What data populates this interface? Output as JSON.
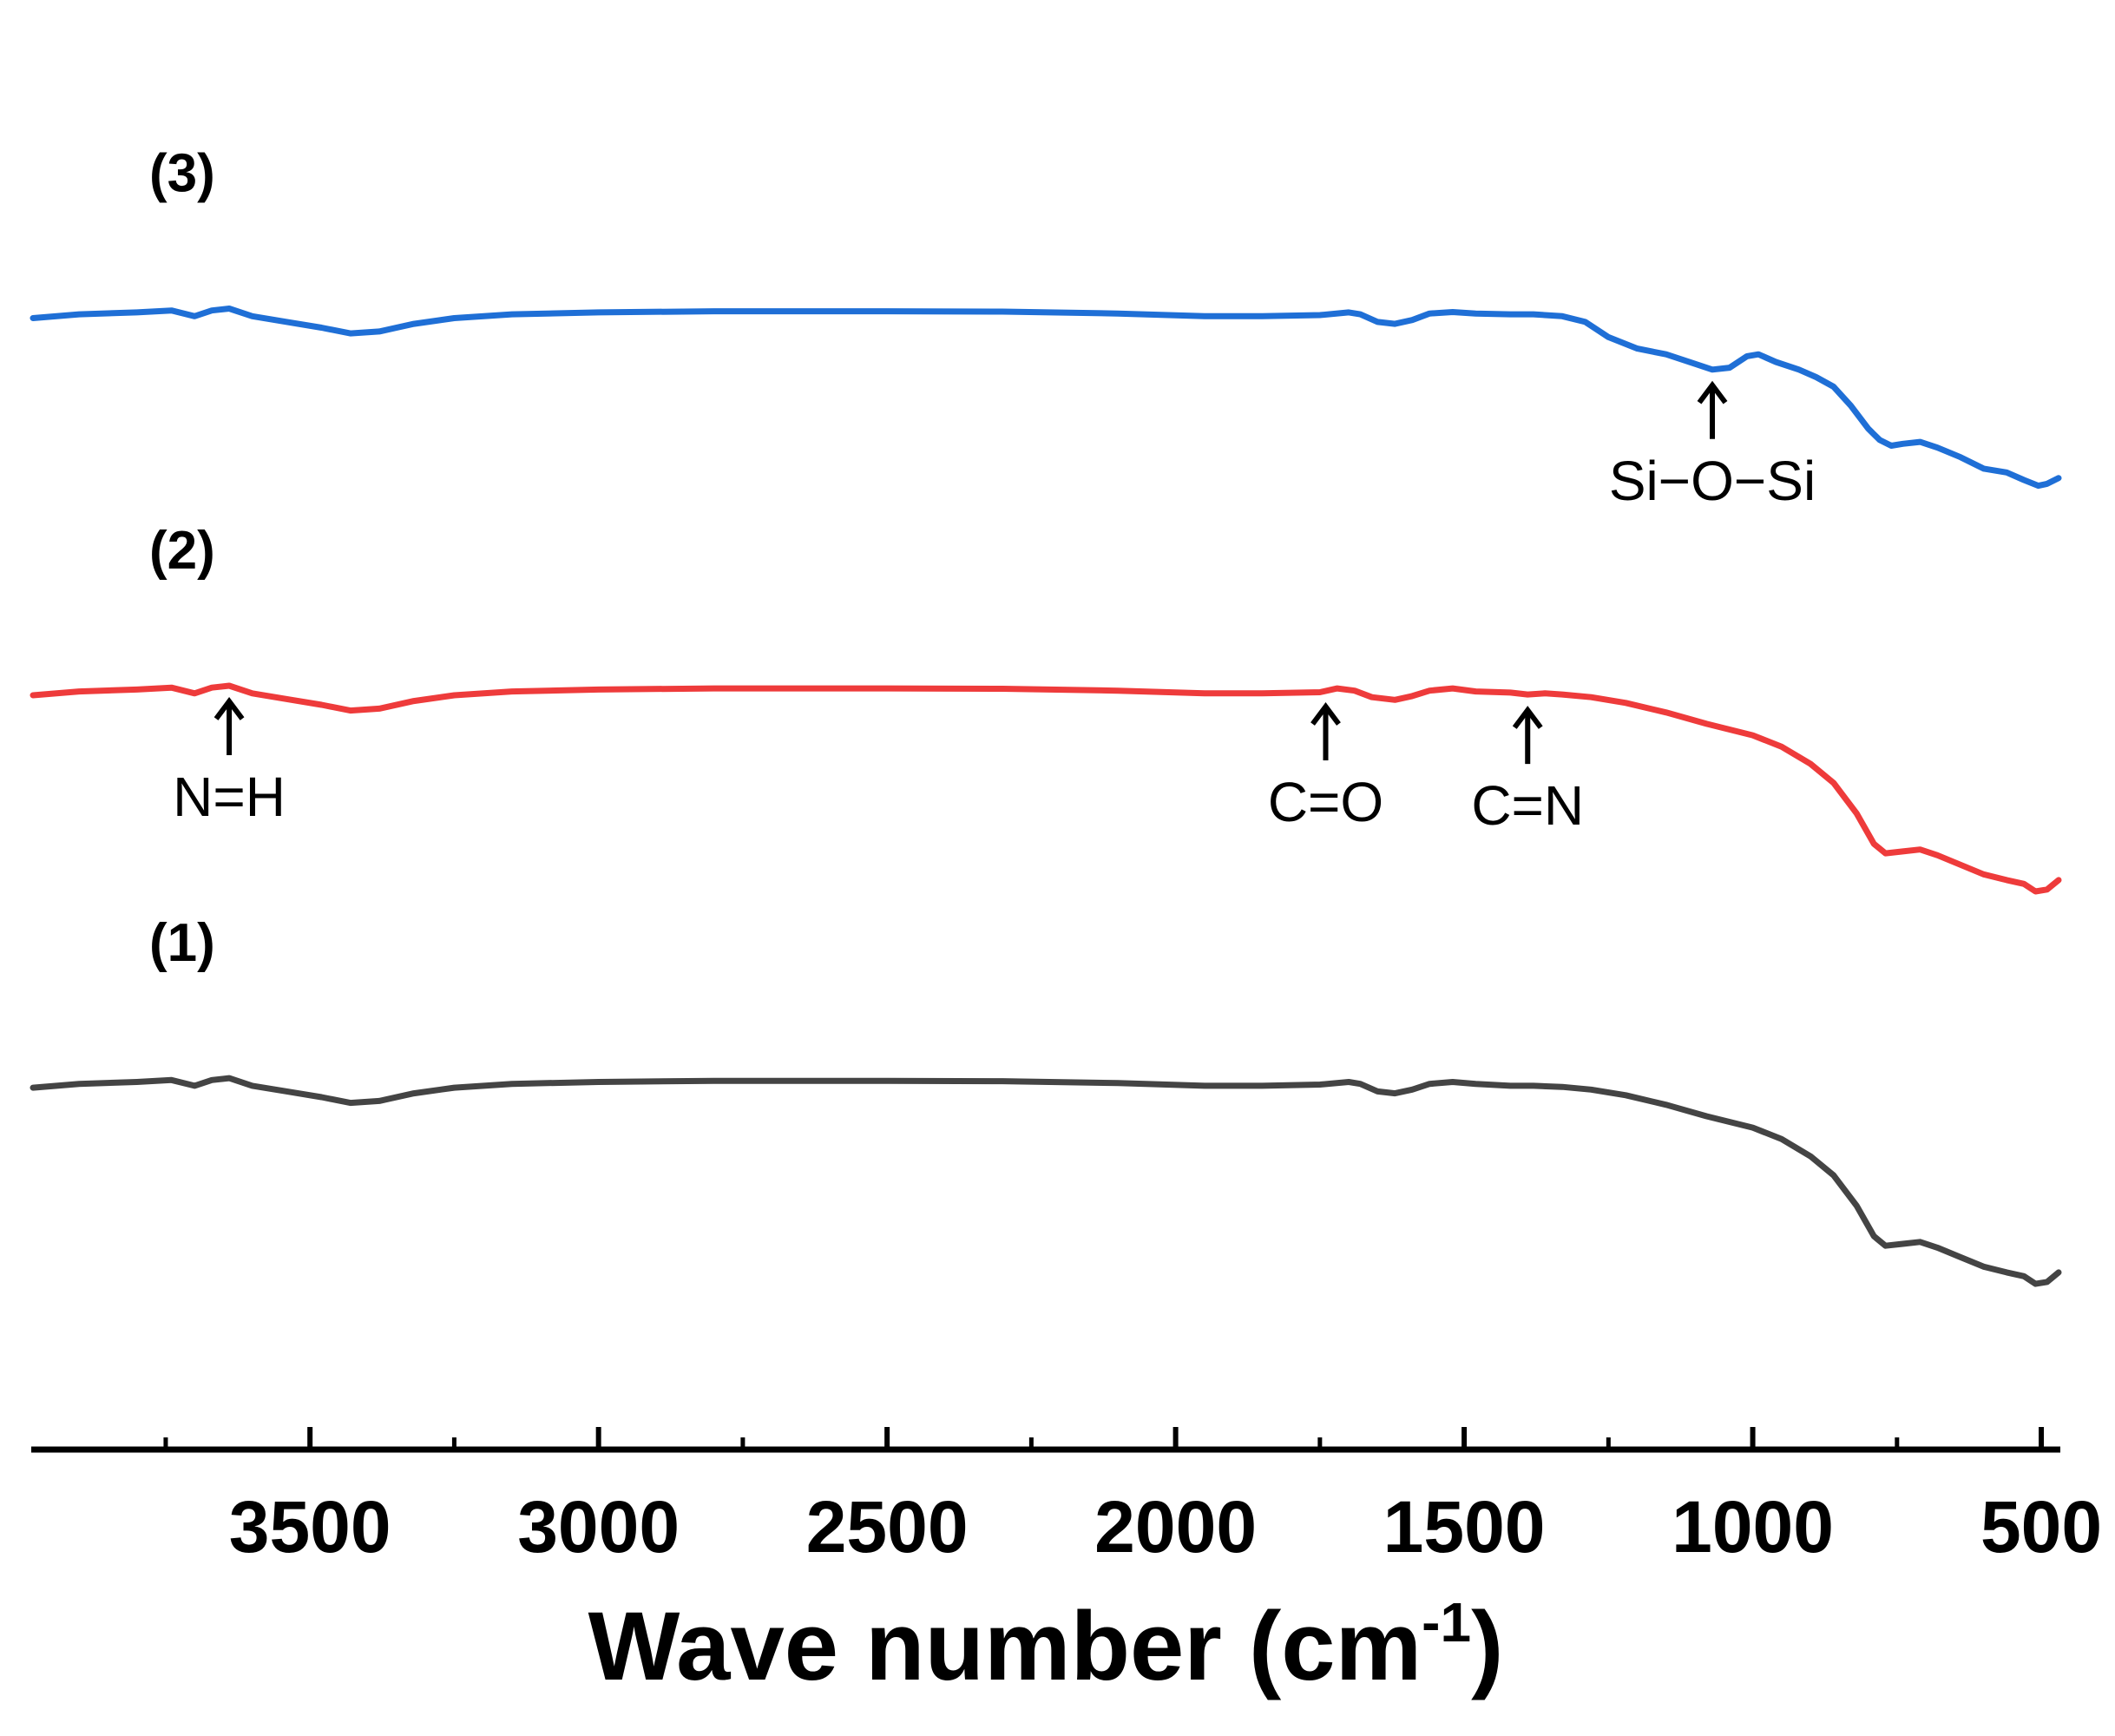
{
  "chart_data": {
    "type": "line",
    "xlabel": {
      "text": "Wave number (cm",
      "sup": "-1",
      "close": ")"
    },
    "ylabel": "",
    "x_reversed": true,
    "xlim": [
      3980,
      470
    ],
    "ylim": [
      0,
      3.6
    ],
    "x_ticks": [
      {
        "value": 3500,
        "label": "3500"
      },
      {
        "value": 3000,
        "label": "3000"
      },
      {
        "value": 2500,
        "label": "2500"
      },
      {
        "value": 2000,
        "label": "2000"
      },
      {
        "value": 1500,
        "label": "1500"
      },
      {
        "value": 1000,
        "label": "1000"
      },
      {
        "value": 500,
        "label": "500"
      }
    ],
    "x_minor_ticks": [
      3750,
      3250,
      2750,
      2250,
      1750,
      1250,
      750
    ],
    "grid": false,
    "series": [
      {
        "name": "(1)",
        "color": "#444444",
        "offset": 0.0,
        "points": [
          [
            3980,
            0.95
          ],
          [
            3900,
            0.96
          ],
          [
            3800,
            0.965
          ],
          [
            3740,
            0.97
          ],
          [
            3700,
            0.955
          ],
          [
            3670,
            0.97
          ],
          [
            3640,
            0.975
          ],
          [
            3600,
            0.955
          ],
          [
            3540,
            0.94
          ],
          [
            3480,
            0.925
          ],
          [
            3430,
            0.91
          ],
          [
            3380,
            0.915
          ],
          [
            3320,
            0.935
          ],
          [
            3250,
            0.95
          ],
          [
            3150,
            0.96
          ],
          [
            3000,
            0.965
          ],
          [
            2800,
            0.968
          ],
          [
            2500,
            0.968
          ],
          [
            2300,
            0.967
          ],
          [
            2100,
            0.962
          ],
          [
            1950,
            0.955
          ],
          [
            1850,
            0.955
          ],
          [
            1750,
            0.958
          ],
          [
            1700,
            0.965
          ],
          [
            1680,
            0.96
          ],
          [
            1650,
            0.94
          ],
          [
            1620,
            0.935
          ],
          [
            1590,
            0.945
          ],
          [
            1560,
            0.96
          ],
          [
            1520,
            0.965
          ],
          [
            1480,
            0.96
          ],
          [
            1420,
            0.955
          ],
          [
            1380,
            0.955
          ],
          [
            1330,
            0.952
          ],
          [
            1280,
            0.945
          ],
          [
            1220,
            0.93
          ],
          [
            1150,
            0.905
          ],
          [
            1080,
            0.875
          ],
          [
            1000,
            0.845
          ],
          [
            950,
            0.815
          ],
          [
            900,
            0.77
          ],
          [
            860,
            0.72
          ],
          [
            820,
            0.64
          ],
          [
            790,
            0.56
          ],
          [
            770,
            0.535
          ],
          [
            740,
            0.54
          ],
          [
            710,
            0.545
          ],
          [
            680,
            0.53
          ],
          [
            640,
            0.505
          ],
          [
            600,
            0.48
          ],
          [
            560,
            0.465
          ],
          [
            530,
            0.455
          ],
          [
            510,
            0.435
          ],
          [
            490,
            0.44
          ],
          [
            470,
            0.465
          ]
        ]
      },
      {
        "name": "(2)",
        "color": "#ee3b3b",
        "offset": 1.03,
        "points": [
          [
            3980,
            0.95
          ],
          [
            3900,
            0.96
          ],
          [
            3800,
            0.965
          ],
          [
            3740,
            0.97
          ],
          [
            3700,
            0.955
          ],
          [
            3670,
            0.97
          ],
          [
            3640,
            0.975
          ],
          [
            3600,
            0.955
          ],
          [
            3540,
            0.94
          ],
          [
            3480,
            0.925
          ],
          [
            3430,
            0.91
          ],
          [
            3380,
            0.915
          ],
          [
            3320,
            0.935
          ],
          [
            3250,
            0.95
          ],
          [
            3150,
            0.96
          ],
          [
            3000,
            0.965
          ],
          [
            2800,
            0.968
          ],
          [
            2500,
            0.968
          ],
          [
            2300,
            0.967
          ],
          [
            2100,
            0.962
          ],
          [
            1950,
            0.955
          ],
          [
            1850,
            0.955
          ],
          [
            1750,
            0.958
          ],
          [
            1720,
            0.968
          ],
          [
            1690,
            0.962
          ],
          [
            1660,
            0.945
          ],
          [
            1620,
            0.938
          ],
          [
            1590,
            0.948
          ],
          [
            1560,
            0.962
          ],
          [
            1520,
            0.968
          ],
          [
            1480,
            0.96
          ],
          [
            1420,
            0.957
          ],
          [
            1390,
            0.952
          ],
          [
            1360,
            0.955
          ],
          [
            1330,
            0.952
          ],
          [
            1280,
            0.945
          ],
          [
            1220,
            0.93
          ],
          [
            1150,
            0.905
          ],
          [
            1080,
            0.875
          ],
          [
            1000,
            0.845
          ],
          [
            950,
            0.815
          ],
          [
            900,
            0.77
          ],
          [
            860,
            0.72
          ],
          [
            820,
            0.64
          ],
          [
            790,
            0.56
          ],
          [
            770,
            0.535
          ],
          [
            740,
            0.54
          ],
          [
            710,
            0.545
          ],
          [
            680,
            0.53
          ],
          [
            640,
            0.505
          ],
          [
            600,
            0.48
          ],
          [
            560,
            0.465
          ],
          [
            530,
            0.455
          ],
          [
            510,
            0.435
          ],
          [
            490,
            0.44
          ],
          [
            470,
            0.465
          ]
        ]
      },
      {
        "name": "(3)",
        "color": "#1f6fd6",
        "offset": 2.02,
        "points": [
          [
            3980,
            0.95
          ],
          [
            3900,
            0.96
          ],
          [
            3800,
            0.965
          ],
          [
            3740,
            0.97
          ],
          [
            3700,
            0.955
          ],
          [
            3670,
            0.97
          ],
          [
            3640,
            0.975
          ],
          [
            3600,
            0.955
          ],
          [
            3540,
            0.94
          ],
          [
            3480,
            0.925
          ],
          [
            3430,
            0.91
          ],
          [
            3380,
            0.915
          ],
          [
            3320,
            0.935
          ],
          [
            3250,
            0.95
          ],
          [
            3150,
            0.96
          ],
          [
            3000,
            0.965
          ],
          [
            2800,
            0.968
          ],
          [
            2500,
            0.968
          ],
          [
            2300,
            0.967
          ],
          [
            2100,
            0.962
          ],
          [
            1950,
            0.955
          ],
          [
            1850,
            0.955
          ],
          [
            1750,
            0.958
          ],
          [
            1700,
            0.965
          ],
          [
            1680,
            0.96
          ],
          [
            1650,
            0.94
          ],
          [
            1620,
            0.935
          ],
          [
            1590,
            0.945
          ],
          [
            1560,
            0.962
          ],
          [
            1520,
            0.966
          ],
          [
            1480,
            0.962
          ],
          [
            1420,
            0.96
          ],
          [
            1380,
            0.96
          ],
          [
            1330,
            0.955
          ],
          [
            1290,
            0.94
          ],
          [
            1250,
            0.9
          ],
          [
            1200,
            0.87
          ],
          [
            1150,
            0.855
          ],
          [
            1100,
            0.83
          ],
          [
            1070,
            0.815
          ],
          [
            1040,
            0.82
          ],
          [
            1010,
            0.85
          ],
          [
            990,
            0.855
          ],
          [
            960,
            0.835
          ],
          [
            920,
            0.815
          ],
          [
            890,
            0.795
          ],
          [
            860,
            0.77
          ],
          [
            830,
            0.72
          ],
          [
            800,
            0.66
          ],
          [
            780,
            0.63
          ],
          [
            760,
            0.615
          ],
          [
            740,
            0.62
          ],
          [
            710,
            0.625
          ],
          [
            680,
            0.61
          ],
          [
            640,
            0.585
          ],
          [
            600,
            0.555
          ],
          [
            560,
            0.545
          ],
          [
            530,
            0.525
          ],
          [
            505,
            0.51
          ],
          [
            490,
            0.515
          ],
          [
            470,
            0.53
          ]
        ]
      }
    ],
    "annotations": [
      {
        "label": "N=H",
        "series": "(2)",
        "x": 3640
      },
      {
        "label": "C=O",
        "series": "(2)",
        "x": 1740
      },
      {
        "label": "C=N",
        "series": "(2)",
        "x": 1390
      },
      {
        "label": "Si−O−Si",
        "series": "(3)",
        "x": 1070
      }
    ]
  }
}
